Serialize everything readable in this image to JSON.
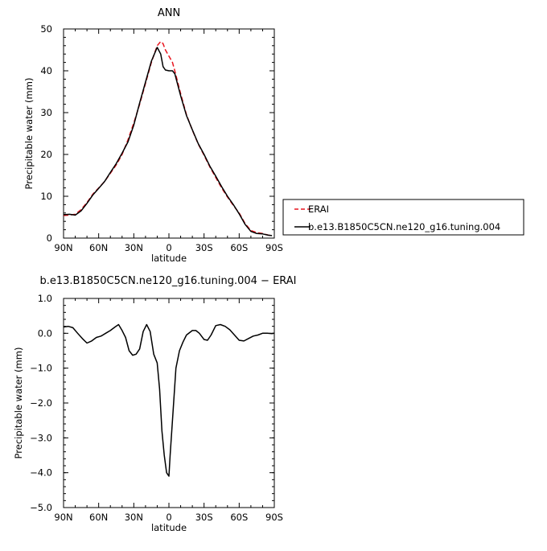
{
  "chart_data": [
    {
      "type": "line",
      "title": "ANN",
      "xlabel": "latitude",
      "ylabel": "Precipitable water (mm)",
      "xlim": [
        90,
        -90
      ],
      "ylim": [
        0,
        50
      ],
      "x_ticks": [
        90,
        60,
        30,
        0,
        -30,
        -60,
        -90
      ],
      "x_tick_labels": [
        "90N",
        "60N",
        "30N",
        "0",
        "30S",
        "60S",
        "90S"
      ],
      "y_ticks": [
        0,
        10,
        20,
        30,
        40,
        50
      ],
      "y_tick_labels": [
        "0",
        "10",
        "20",
        "30",
        "40",
        "50"
      ],
      "legend_position": "right",
      "series": [
        {
          "name": "ERAI",
          "color": "#e8141e",
          "dash": "dashed",
          "x": [
            90,
            85,
            80,
            75,
            70,
            65,
            60,
            55,
            50,
            45,
            40,
            35,
            30,
            25,
            20,
            15,
            10,
            7,
            5,
            3,
            0,
            -3,
            -5,
            -10,
            -15,
            -20,
            -25,
            -30,
            -35,
            -40,
            -45,
            -50,
            -55,
            -60,
            -65,
            -70,
            -75,
            -80,
            -85,
            -88
          ],
          "values": [
            5.4,
            5.5,
            5.7,
            6.8,
            8.5,
            10.5,
            12.0,
            13.5,
            15.5,
            17.5,
            20.0,
            23.5,
            27.5,
            32.0,
            37.0,
            42.0,
            46.0,
            47.0,
            46.5,
            45.0,
            43.5,
            42.0,
            40.0,
            34.5,
            29.5,
            25.8,
            22.5,
            19.8,
            17.0,
            14.5,
            12.0,
            9.8,
            7.8,
            6.0,
            3.5,
            1.8,
            1.3,
            1.1,
            0.7,
            0.6
          ]
        },
        {
          "name": "b.e13.B1850C5CN.ne120_g16.tuning.004",
          "color": "#000000",
          "dash": "solid",
          "x": [
            90,
            85,
            80,
            75,
            70,
            65,
            60,
            55,
            50,
            45,
            40,
            35,
            30,
            25,
            20,
            15,
            10,
            7,
            5,
            3,
            0,
            -3,
            -5,
            -10,
            -15,
            -20,
            -25,
            -30,
            -35,
            -40,
            -45,
            -50,
            -55,
            -60,
            -65,
            -70,
            -75,
            -80,
            -85,
            -88
          ],
          "values": [
            5.6,
            5.7,
            5.5,
            6.5,
            8.3,
            10.3,
            11.9,
            13.5,
            15.7,
            17.8,
            20.3,
            23.0,
            27.0,
            32.3,
            37.3,
            42.3,
            45.6,
            44.0,
            41.0,
            40.2,
            40.0,
            40.0,
            39.3,
            34.0,
            29.3,
            25.9,
            22.6,
            20.0,
            17.2,
            14.8,
            12.3,
            10.0,
            8.0,
            5.8,
            3.3,
            1.6,
            1.1,
            1.0,
            0.7,
            0.6
          ]
        }
      ]
    },
    {
      "type": "line",
      "title": "b.e13.B1850C5CN.ne120_g16.tuning.004 − ERAI",
      "xlabel": "latitude",
      "ylabel": "Precipitable water (mm)",
      "xlim": [
        90,
        -90
      ],
      "ylim": [
        -5,
        1
      ],
      "x_ticks": [
        90,
        60,
        30,
        0,
        -30,
        -60,
        -90
      ],
      "x_tick_labels": [
        "90N",
        "60N",
        "30N",
        "0",
        "30S",
        "60S",
        "90S"
      ],
      "y_ticks": [
        1,
        0,
        -1,
        -2,
        -3,
        -4,
        -5
      ],
      "y_tick_labels": [
        "1.0",
        "0.0",
        "−1.0",
        "−2.0",
        "−3.0",
        "−4.0",
        "−5.0"
      ],
      "series": [
        {
          "color": "#000000",
          "dash": "solid",
          "x": [
            90,
            86,
            82,
            78,
            74,
            70,
            66,
            62,
            58,
            54,
            50,
            46,
            43,
            40,
            37,
            34,
            31,
            28,
            25,
            22,
            19,
            16,
            13,
            10,
            8,
            6,
            4,
            2,
            0,
            -1,
            -3,
            -6,
            -9,
            -12,
            -15,
            -20,
            -23,
            -26,
            -30,
            -33,
            -36,
            -40,
            -44,
            -48,
            -52,
            -56,
            -60,
            -64,
            -68,
            -72,
            -76,
            -80,
            -84,
            -88,
            -90
          ],
          "values": [
            0.18,
            0.2,
            0.16,
            0.0,
            -0.15,
            -0.28,
            -0.22,
            -0.12,
            -0.08,
            0.0,
            0.08,
            0.18,
            0.25,
            0.08,
            -0.12,
            -0.5,
            -0.63,
            -0.6,
            -0.45,
            0.05,
            0.25,
            0.05,
            -0.6,
            -0.85,
            -1.6,
            -2.8,
            -3.5,
            -4.0,
            -4.1,
            -3.5,
            -2.5,
            -1.0,
            -0.5,
            -0.25,
            -0.05,
            0.08,
            0.08,
            0.0,
            -0.18,
            -0.2,
            -0.05,
            0.22,
            0.25,
            0.2,
            0.1,
            -0.05,
            -0.2,
            -0.22,
            -0.15,
            -0.08,
            -0.05,
            0.0,
            0.0,
            -0.01,
            0.0
          ]
        }
      ]
    }
  ]
}
